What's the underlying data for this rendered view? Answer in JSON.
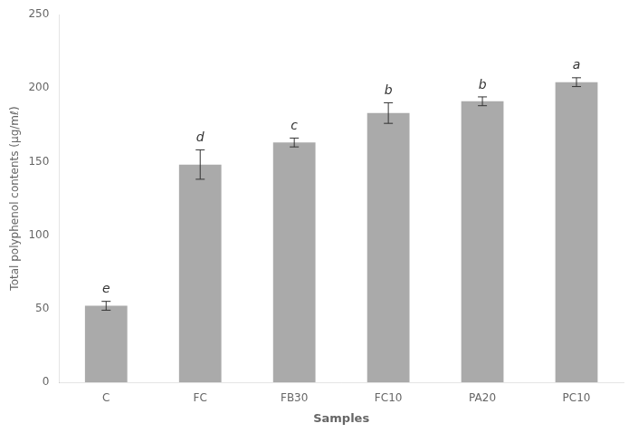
{
  "chart_data": {
    "type": "bar",
    "categories": [
      "C",
      "FC",
      "FB30",
      "FC10",
      "PA20",
      "PC10"
    ],
    "values": [
      52,
      148,
      163,
      183,
      191,
      204
    ],
    "errors": [
      3,
      10,
      3,
      7,
      3,
      3
    ],
    "annotations": [
      "e",
      "d",
      "c",
      "b",
      "b",
      "a"
    ],
    "color": "#aaaaaa",
    "xlabel": "Samples",
    "ylabel": "Total polyphenol contents (μg/mℓ)",
    "ylim": [
      0,
      250
    ],
    "yticks": [
      0,
      50,
      100,
      150,
      200,
      250
    ],
    "grid": false,
    "legend": false
  }
}
